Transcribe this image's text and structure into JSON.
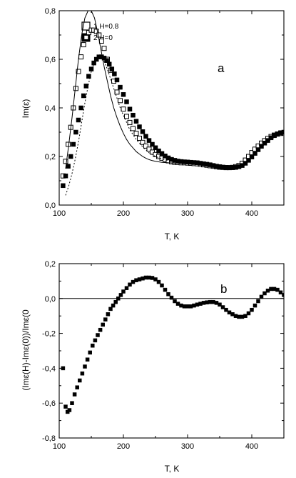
{
  "chart_data": [
    {
      "type": "scatter",
      "panel_label": "a",
      "xlabel": "T, K",
      "ylabel": "Im(ε)",
      "xlim": [
        100,
        450
      ],
      "ylim": [
        0.0,
        0.8
      ],
      "x_ticks": [
        "100",
        "200",
        "300",
        "400"
      ],
      "y_ticks": [
        "0,0",
        "0,2",
        "0,4",
        "0,6",
        "0,8"
      ],
      "legend_position": "top-right",
      "series": [
        {
          "name": "1  H=0.8",
          "marker": "open-square",
          "x": [
            106,
            110,
            114,
            118,
            122,
            126,
            130,
            134,
            138,
            142,
            146,
            150,
            154,
            158,
            162,
            166,
            170,
            175,
            180,
            185,
            190,
            195,
            200,
            205,
            210,
            215,
            220,
            225,
            230,
            235,
            240,
            245,
            250,
            255,
            260,
            265,
            270,
            275,
            280,
            285,
            290,
            295,
            300,
            305,
            310,
            315,
            320,
            325,
            330,
            335,
            340,
            345,
            350,
            355,
            360,
            365,
            370,
            375,
            380,
            385,
            390,
            395,
            400,
            405,
            410,
            415,
            420,
            425,
            430,
            435,
            440,
            445,
            450
          ],
          "y": [
            0.12,
            0.18,
            0.25,
            0.32,
            0.4,
            0.48,
            0.55,
            0.61,
            0.66,
            0.69,
            0.71,
            0.72,
            0.72,
            0.715,
            0.7,
            0.675,
            0.645,
            0.6,
            0.555,
            0.51,
            0.465,
            0.43,
            0.395,
            0.365,
            0.34,
            0.315,
            0.295,
            0.275,
            0.258,
            0.243,
            0.23,
            0.218,
            0.208,
            0.2,
            0.193,
            0.187,
            0.182,
            0.178,
            0.176,
            0.175,
            0.174,
            0.174,
            0.173,
            0.172,
            0.171,
            0.17,
            0.168,
            0.166,
            0.164,
            0.162,
            0.16,
            0.158,
            0.156,
            0.155,
            0.154,
            0.154,
            0.155,
            0.158,
            0.163,
            0.172,
            0.185,
            0.2,
            0.216,
            0.23,
            0.243,
            0.255,
            0.265,
            0.274,
            0.282,
            0.288,
            0.292,
            0.295,
            0.297
          ]
        },
        {
          "name": "2  H=0",
          "marker": "filled-square",
          "x": [
            106,
            110,
            114,
            118,
            122,
            126,
            130,
            134,
            138,
            142,
            146,
            150,
            154,
            158,
            162,
            166,
            170,
            174,
            178,
            182,
            186,
            190,
            195,
            200,
            205,
            210,
            215,
            220,
            225,
            230,
            235,
            240,
            245,
            250,
            255,
            260,
            265,
            270,
            275,
            280,
            285,
            290,
            295,
            300,
            305,
            310,
            315,
            320,
            325,
            330,
            335,
            340,
            345,
            350,
            355,
            360,
            365,
            370,
            375,
            380,
            385,
            390,
            395,
            400,
            405,
            410,
            415,
            420,
            425,
            430,
            435,
            440,
            445,
            450
          ],
          "y": [
            0.08,
            0.12,
            0.16,
            0.2,
            0.25,
            0.3,
            0.35,
            0.4,
            0.45,
            0.49,
            0.53,
            0.56,
            0.585,
            0.6,
            0.61,
            0.61,
            0.605,
            0.595,
            0.58,
            0.56,
            0.54,
            0.515,
            0.485,
            0.455,
            0.425,
            0.395,
            0.37,
            0.345,
            0.322,
            0.302,
            0.283,
            0.266,
            0.25,
            0.236,
            0.223,
            0.212,
            0.202,
            0.194,
            0.188,
            0.184,
            0.181,
            0.179,
            0.178,
            0.177,
            0.176,
            0.175,
            0.174,
            0.172,
            0.17,
            0.168,
            0.166,
            0.163,
            0.16,
            0.158,
            0.156,
            0.155,
            0.154,
            0.154,
            0.155,
            0.158,
            0.163,
            0.172,
            0.184,
            0.198,
            0.213,
            0.228,
            0.242,
            0.255,
            0.266,
            0.277,
            0.286,
            0.293,
            0.298,
            0.3
          ]
        },
        {
          "name": "",
          "marker": "solid-line",
          "x": [
            110,
            115,
            120,
            125,
            130,
            135,
            140,
            145,
            150,
            155,
            160,
            165,
            170,
            175,
            180,
            185,
            190,
            195,
            200,
            205,
            210,
            215,
            220,
            225,
            230,
            235,
            240,
            245,
            250,
            255,
            260,
            265,
            270,
            280,
            290,
            300
          ],
          "y": [
            0.15,
            0.25,
            0.36,
            0.48,
            0.6,
            0.7,
            0.77,
            0.8,
            0.8,
            0.77,
            0.71,
            0.64,
            0.57,
            0.51,
            0.45,
            0.4,
            0.36,
            0.325,
            0.295,
            0.27,
            0.25,
            0.235,
            0.22,
            0.21,
            0.2,
            0.193,
            0.187,
            0.183,
            0.18,
            0.178,
            0.176,
            0.175,
            0.174,
            0.173,
            0.172,
            0.171
          ]
        },
        {
          "name": "",
          "marker": "dashed-line",
          "x": [
            110,
            115,
            120,
            125,
            130,
            135,
            140,
            145,
            150,
            155,
            160,
            165,
            170,
            175,
            180,
            185,
            190,
            195,
            200,
            205,
            210,
            215,
            220,
            230,
            240,
            250,
            260,
            270,
            280,
            290,
            300
          ],
          "y": [
            0.04,
            0.08,
            0.13,
            0.19,
            0.26,
            0.34,
            0.42,
            0.49,
            0.55,
            0.59,
            0.61,
            0.61,
            0.59,
            0.56,
            0.52,
            0.48,
            0.44,
            0.4,
            0.37,
            0.34,
            0.31,
            0.29,
            0.27,
            0.24,
            0.215,
            0.2,
            0.19,
            0.183,
            0.178,
            0.175,
            0.173
          ]
        }
      ]
    },
    {
      "type": "scatter",
      "panel_label": "b",
      "xlabel": "T, K",
      "ylabel": "(Imε(H)-Imε(0))/Imε(0",
      "xlim": [
        100,
        450
      ],
      "ylim": [
        -0.8,
        0.2
      ],
      "x_ticks": [
        "100",
        "200",
        "300",
        "400"
      ],
      "y_ticks": [
        "-0,8",
        "-0,6",
        "-0,4",
        "-0,2",
        "0,0",
        "0,2"
      ],
      "reference_line_y": 0.0,
      "series": [
        {
          "name": "",
          "marker": "filled-square",
          "x": [
            106,
            110,
            113,
            116,
            120,
            124,
            128,
            132,
            136,
            140,
            144,
            148,
            152,
            156,
            160,
            164,
            168,
            172,
            176,
            180,
            184,
            188,
            192,
            196,
            200,
            205,
            210,
            215,
            220,
            225,
            230,
            235,
            240,
            245,
            250,
            255,
            260,
            265,
            270,
            275,
            280,
            285,
            290,
            295,
            300,
            305,
            310,
            315,
            320,
            325,
            330,
            335,
            340,
            345,
            350,
            355,
            360,
            365,
            370,
            375,
            380,
            385,
            390,
            395,
            400,
            405,
            410,
            415,
            420,
            425,
            430,
            435,
            440,
            445,
            450
          ],
          "y": [
            -0.4,
            -0.62,
            -0.65,
            -0.64,
            -0.6,
            -0.55,
            -0.51,
            -0.47,
            -0.43,
            -0.39,
            -0.35,
            -0.31,
            -0.27,
            -0.24,
            -0.21,
            -0.18,
            -0.15,
            -0.12,
            -0.09,
            -0.06,
            -0.04,
            -0.02,
            0.0,
            0.02,
            0.04,
            0.06,
            0.08,
            0.095,
            0.105,
            0.11,
            0.115,
            0.12,
            0.12,
            0.118,
            0.11,
            0.095,
            0.075,
            0.05,
            0.025,
            0.005,
            -0.015,
            -0.03,
            -0.04,
            -0.045,
            -0.045,
            -0.045,
            -0.04,
            -0.035,
            -0.03,
            -0.025,
            -0.022,
            -0.02,
            -0.02,
            -0.025,
            -0.035,
            -0.05,
            -0.065,
            -0.08,
            -0.09,
            -0.1,
            -0.105,
            -0.105,
            -0.1,
            -0.085,
            -0.065,
            -0.04,
            -0.015,
            0.01,
            0.03,
            0.045,
            0.055,
            0.055,
            0.05,
            0.035,
            0.02
          ]
        }
      ]
    }
  ]
}
